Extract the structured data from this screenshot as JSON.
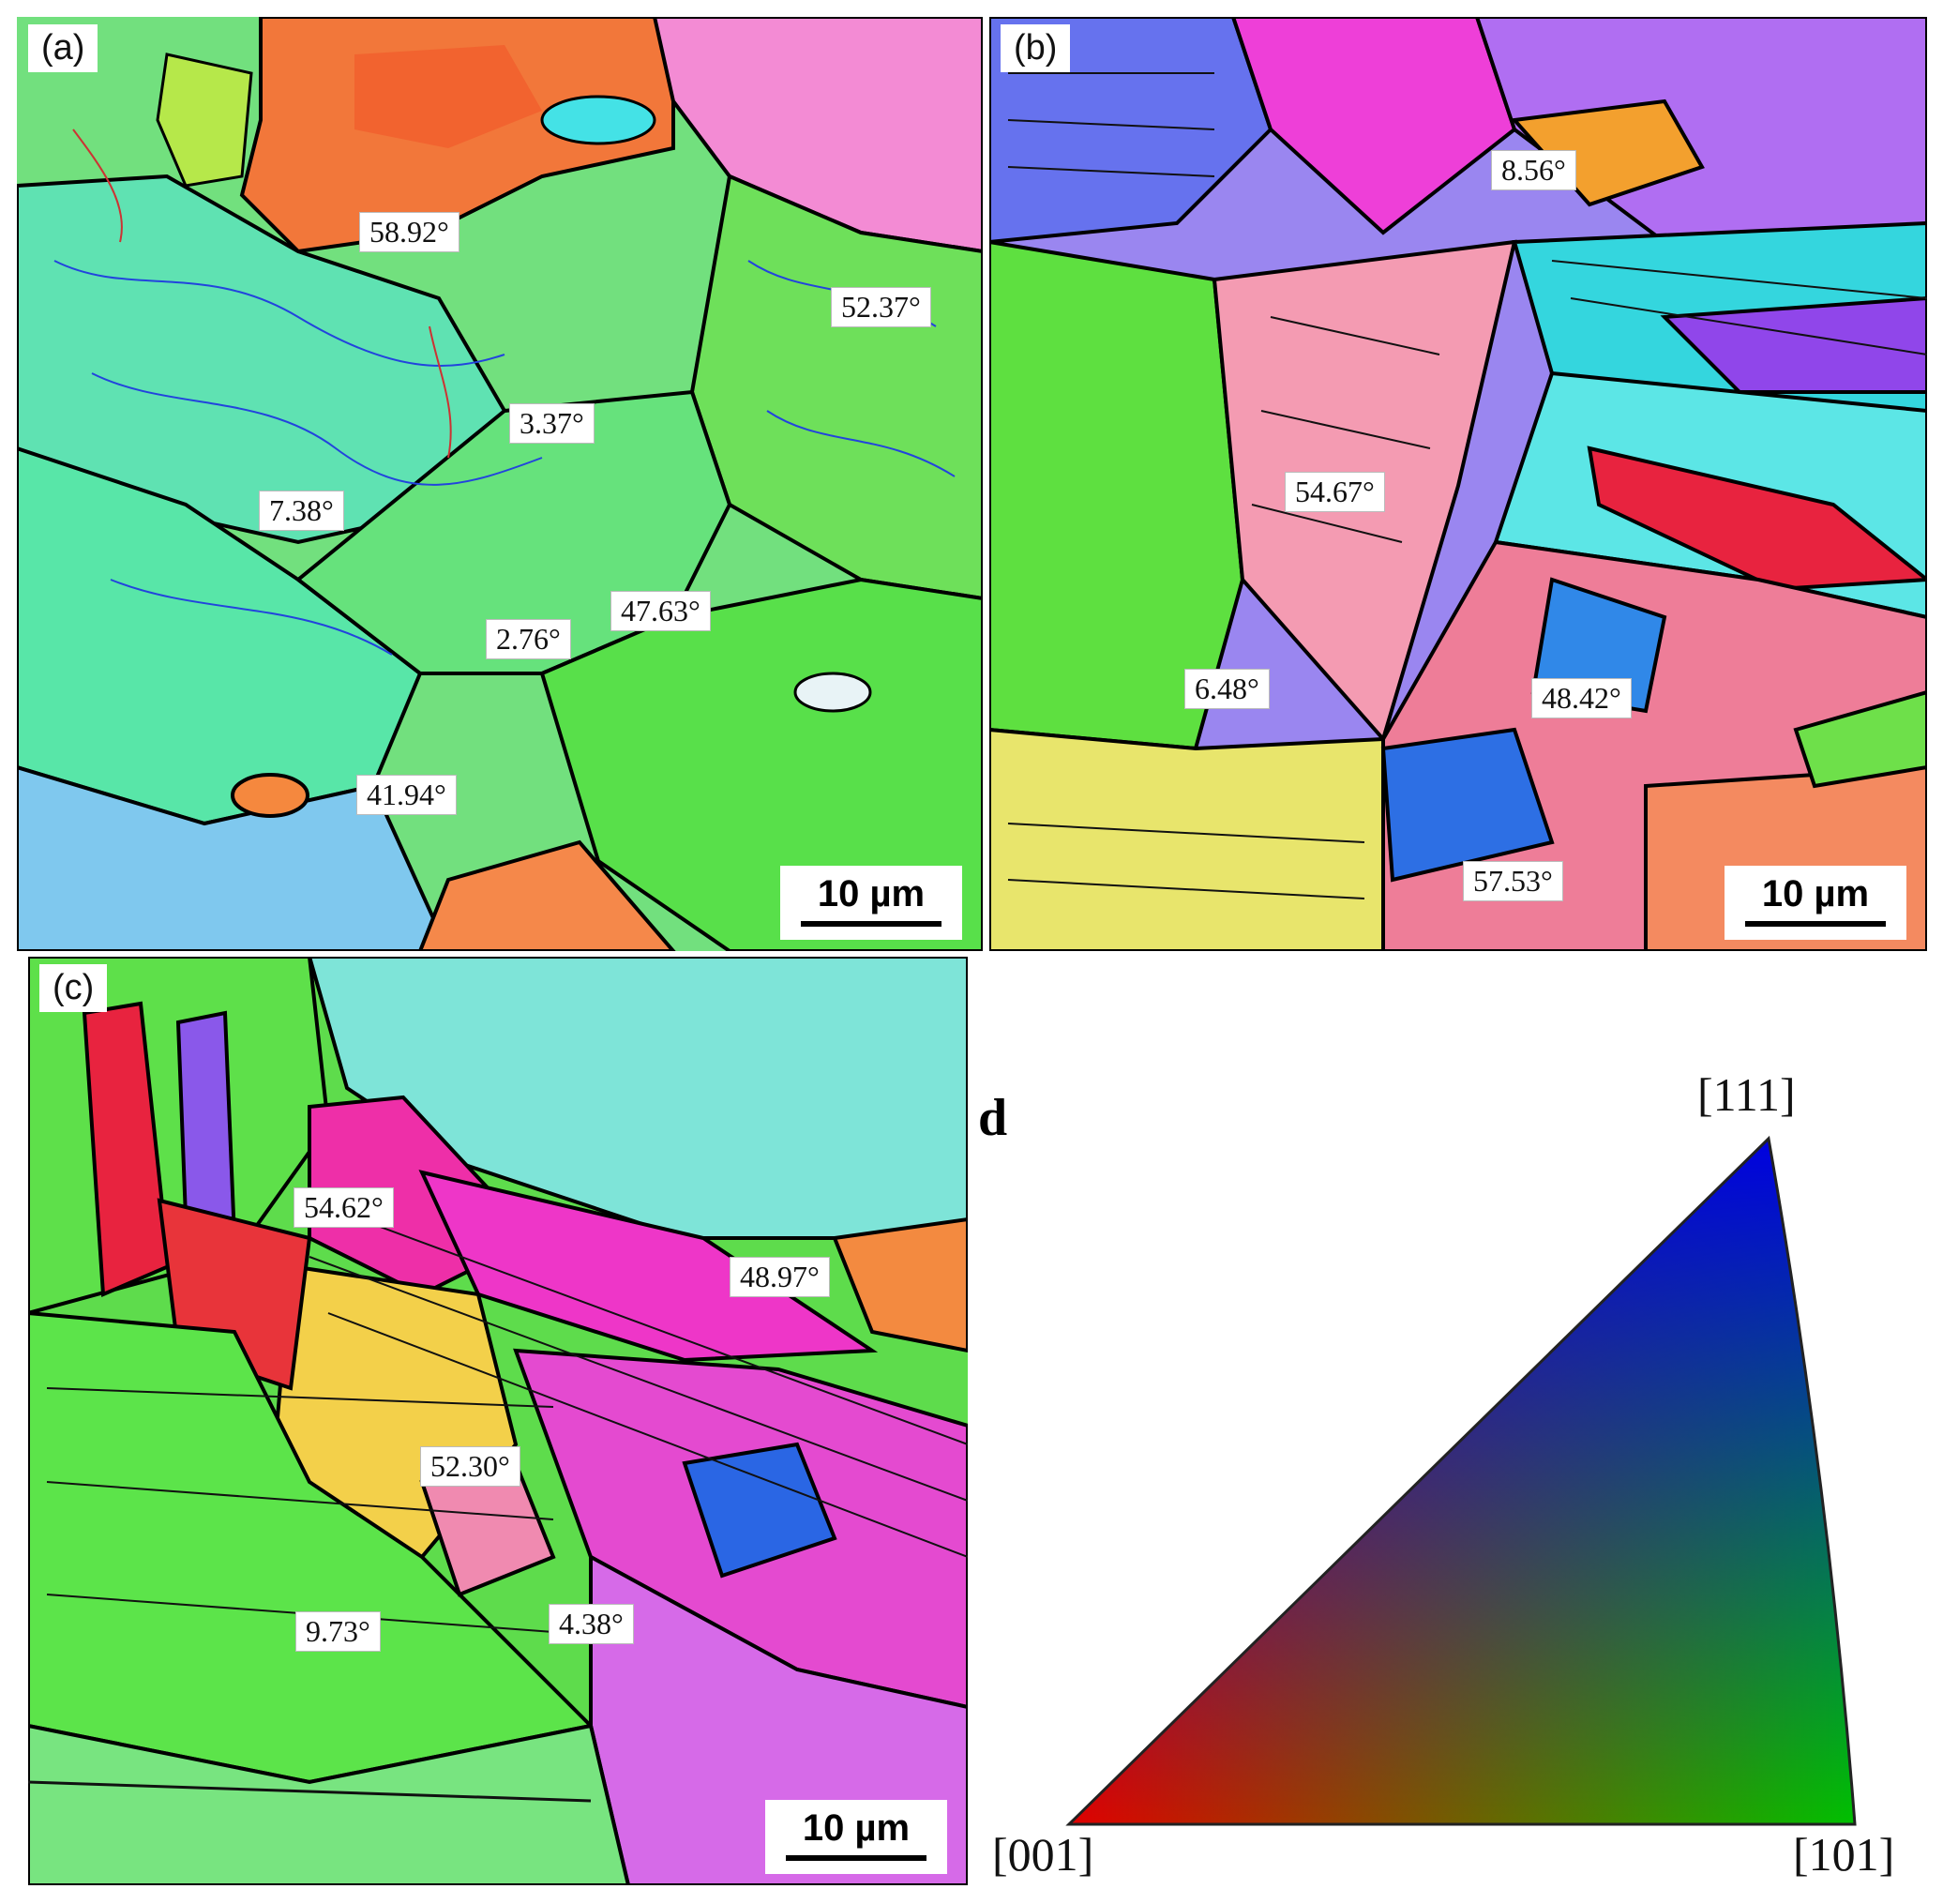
{
  "panels": [
    {
      "label": "(a)",
      "scale": "10 µm",
      "angles": [
        "58.92°",
        "52.37°",
        "3.37°",
        "7.38°",
        "47.63°",
        "2.76°",
        "41.94°"
      ]
    },
    {
      "label": "(b)",
      "scale": "10 µm",
      "angles": [
        "8.56°",
        "54.67°",
        "6.48°",
        "48.42°",
        "57.53°"
      ]
    },
    {
      "label": "(c)",
      "scale": "10 µm",
      "angles": [
        "54.62°",
        "48.97°",
        "52.30°",
        "9.73°",
        "4.38°"
      ]
    }
  ],
  "legend": {
    "label": "d",
    "poles": {
      "top": "[111]",
      "left": "[001]",
      "right": "[101]"
    },
    "colors": {
      "p001": "#e00000",
      "p101": "#00c000",
      "p111": "#0000e0"
    }
  }
}
